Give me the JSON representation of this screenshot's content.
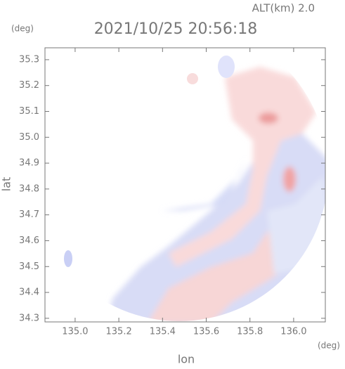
{
  "chart_data": {
    "type": "radar-map",
    "title": "2021/10/25 20:56:18",
    "annotation": "ALT(km)  2.0",
    "xlabel": "lon",
    "ylabel": "lat",
    "x_unit": "(deg)",
    "y_unit": "(deg)",
    "xlim": [
      134.862,
      136.145
    ],
    "ylim": [
      34.286,
      35.346
    ],
    "xticks": [
      {
        "value": 135,
        "label": "135.0"
      },
      135.2,
      135.4,
      135.6,
      135.8,
      {
        "value": 136,
        "label": "136.0"
      }
    ],
    "yticks": [
      34.3,
      34.4,
      34.5,
      34.6,
      34.7,
      34.8,
      34.9,
      {
        "value": 35,
        "label": "35.0"
      },
      35.1,
      35.2,
      35.3
    ]
  }
}
